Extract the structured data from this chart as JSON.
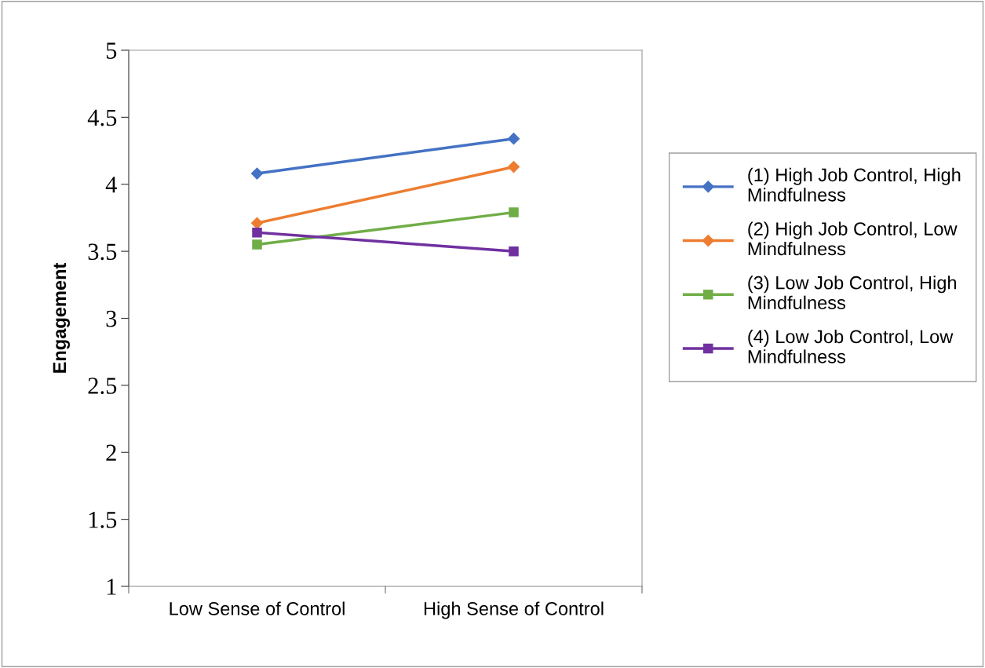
{
  "chart_data": {
    "type": "line",
    "ylabel": "Engagement",
    "categories": [
      "Low Sense of Control",
      "High Sense of Control"
    ],
    "series": [
      {
        "name": "(1) High Job Control, High Mindfulness",
        "color": "#4472c4",
        "marker": "diamond",
        "values": [
          4.08,
          4.34
        ]
      },
      {
        "name": "(2) High Job Control, Low Mindfulness",
        "color": "#ed7d31",
        "marker": "diamond",
        "values": [
          3.71,
          4.13
        ]
      },
      {
        "name": "(3) Low Job Control, High Mindfulness",
        "color": "#70ad47",
        "marker": "square",
        "values": [
          3.55,
          3.79
        ]
      },
      {
        "name": "(4) Low Job Control, Low Mindfulness",
        "color": "#7030a0",
        "marker": "square",
        "values": [
          3.64,
          3.5
        ]
      }
    ],
    "ylim": [
      1,
      5
    ],
    "yticks": [
      1,
      1.5,
      2,
      2.5,
      3,
      3.5,
      4,
      4.5,
      5
    ],
    "grid": false,
    "legend": "right",
    "line_style": "solid"
  }
}
